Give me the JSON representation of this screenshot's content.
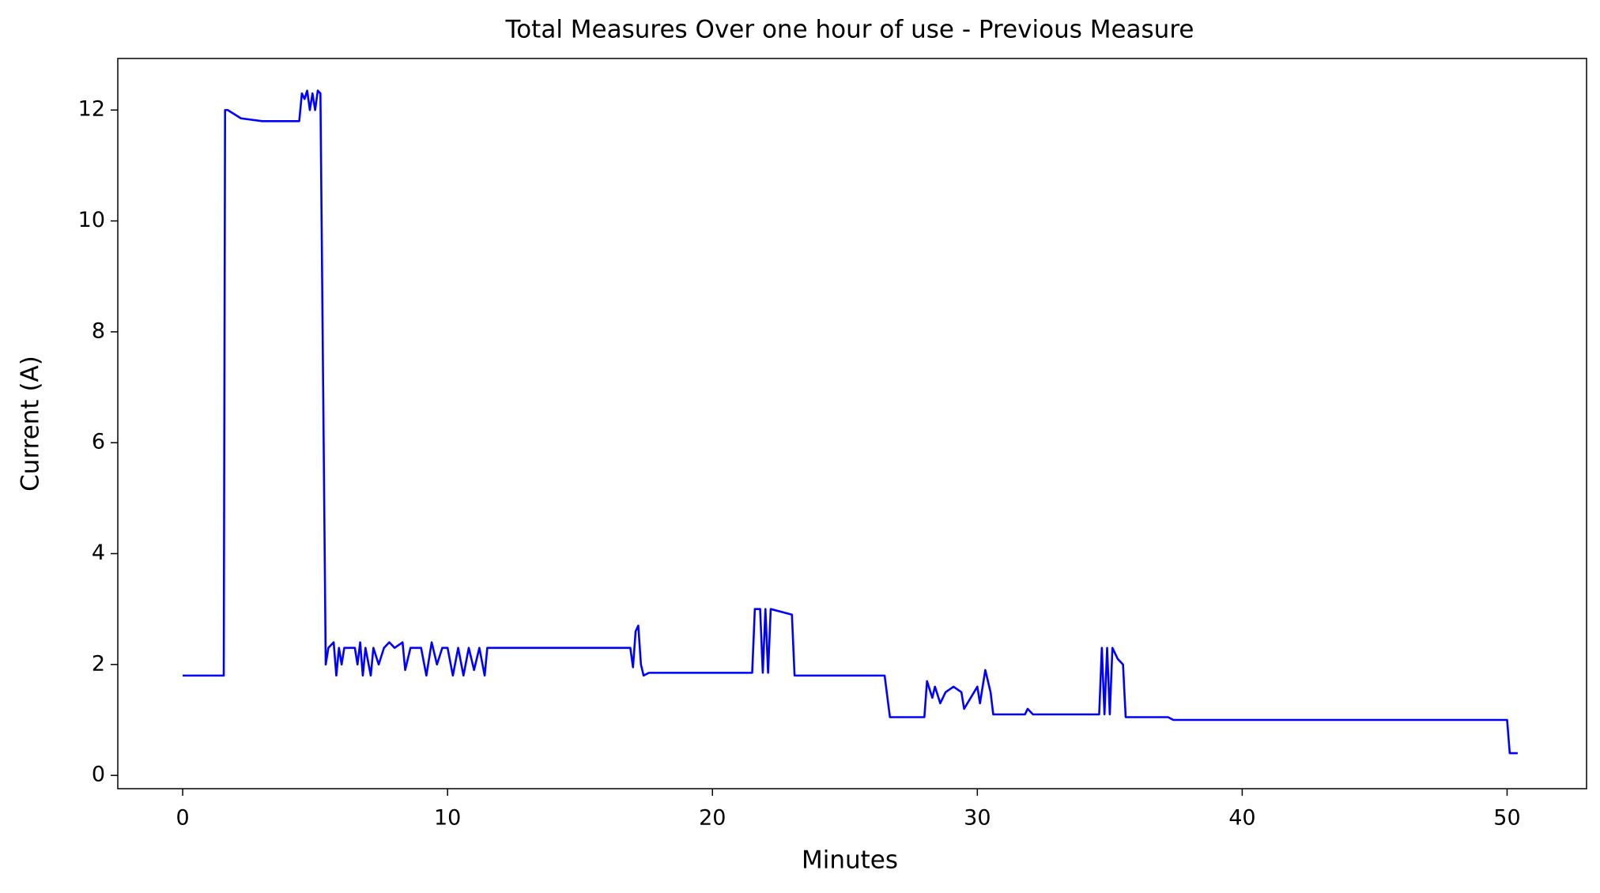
{
  "chart_data": {
    "type": "line",
    "title": "Total Measures Over one hour of use -  Previous Measure",
    "x_label": "Minutes",
    "y_label": "Current (A)",
    "xlim": [
      -2.45,
      53
    ],
    "ylim": [
      -0.24,
      12.93
    ],
    "xticks": [
      0,
      10,
      20,
      30,
      40,
      50
    ],
    "yticks": [
      0,
      2,
      4,
      6,
      8,
      10,
      12
    ],
    "x": [
      0,
      1.55,
      1.6,
      1.7,
      2.2,
      3,
      4.4,
      4.5,
      4.6,
      4.7,
      4.8,
      4.9,
      5.0,
      5.1,
      5.2,
      5.4,
      5.5,
      5.7,
      5.8,
      5.9,
      6.0,
      6.1,
      6.5,
      6.6,
      6.7,
      6.8,
      6.9,
      7.1,
      7.2,
      7.4,
      7.6,
      7.8,
      8.0,
      8.3,
      8.4,
      8.6,
      9.0,
      9.2,
      9.4,
      9.6,
      9.8,
      10.0,
      10.2,
      10.4,
      10.6,
      10.8,
      11.0,
      11.2,
      11.4,
      11.5,
      16.9,
      17.0,
      17.1,
      17.2,
      17.3,
      17.4,
      17.6,
      21.5,
      21.6,
      21.8,
      21.9,
      22.0,
      22.1,
      22.2,
      23.0,
      23.1,
      26.5,
      26.7,
      28.0,
      28.1,
      28.3,
      28.4,
      28.6,
      28.8,
      29.1,
      29.4,
      29.5,
      30.0,
      30.1,
      30.3,
      30.5,
      30.6,
      31.8,
      31.9,
      32.1,
      34.6,
      34.7,
      34.8,
      34.9,
      35.0,
      35.1,
      35.3,
      35.5,
      35.6,
      37.2,
      37.4,
      50.0,
      50.1,
      50.4
    ],
    "series": [
      {
        "color": "#0000ff",
        "values": [
          1.8,
          1.8,
          12.0,
          12.0,
          11.85,
          11.8,
          11.8,
          12.3,
          12.2,
          12.35,
          12.0,
          12.3,
          12.0,
          12.35,
          12.3,
          2.0,
          2.3,
          2.4,
          1.8,
          2.3,
          2.0,
          2.3,
          2.3,
          2.0,
          2.4,
          1.8,
          2.3,
          1.8,
          2.3,
          2.0,
          2.3,
          2.4,
          2.3,
          2.4,
          1.9,
          2.3,
          2.3,
          1.8,
          2.4,
          2.0,
          2.3,
          2.3,
          1.8,
          2.3,
          1.8,
          2.3,
          1.9,
          2.3,
          1.8,
          2.3,
          2.3,
          1.95,
          2.6,
          2.7,
          2.0,
          1.8,
          1.85,
          1.85,
          3.0,
          3.0,
          1.85,
          3.0,
          1.85,
          3.0,
          2.9,
          1.8,
          1.8,
          1.05,
          1.05,
          1.7,
          1.4,
          1.6,
          1.3,
          1.5,
          1.6,
          1.5,
          1.2,
          1.6,
          1.3,
          1.9,
          1.5,
          1.1,
          1.1,
          1.2,
          1.1,
          1.1,
          2.3,
          1.1,
          2.3,
          1.1,
          2.3,
          2.1,
          2.0,
          1.05,
          1.05,
          1.0,
          1.0,
          0.4,
          0.4
        ]
      }
    ]
  }
}
